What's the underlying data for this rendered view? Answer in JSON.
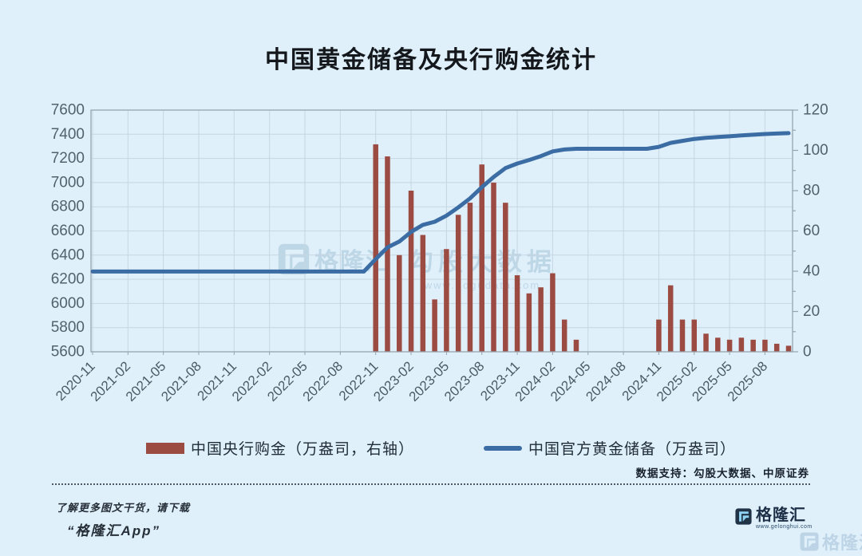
{
  "title": "中国黄金储备及央行购金统计",
  "watermark_center": {
    "brand": "格隆汇",
    "name": "勾股大数据",
    "url": "www.gogudata.com"
  },
  "legend": {
    "bar_label": "中国央行购金（万盎司，右轴）",
    "line_label": "中国官方黄金储备（万盎司）"
  },
  "footer": {
    "data_support": "数据支持：勾股大数据、中原证券",
    "promo_line1": "了解更多图文干货，请下载",
    "promo_line2": "“格隆汇App”",
    "brand": "格隆汇",
    "brand_url": "www.gelonghui.com",
    "corner_watermark": "格隆汇"
  },
  "colors": {
    "bar": "#9c4b43",
    "line": "#3b6da4",
    "grid": "#c6d6e2",
    "spine": "#97a4ae",
    "tick_label": "#53616d",
    "x_label": "#4b5a67"
  },
  "chart_data": {
    "type": "bar+line",
    "title": "中国黄金储备及央行购金统计",
    "x": [
      "2020-11",
      "2020-12",
      "2021-01",
      "2021-02",
      "2021-03",
      "2021-04",
      "2021-05",
      "2021-06",
      "2021-07",
      "2021-08",
      "2021-09",
      "2021-10",
      "2021-11",
      "2021-12",
      "2022-01",
      "2022-02",
      "2022-03",
      "2022-04",
      "2022-05",
      "2022-06",
      "2022-07",
      "2022-08",
      "2022-09",
      "2022-10",
      "2022-11",
      "2022-12",
      "2023-01",
      "2023-02",
      "2023-03",
      "2023-04",
      "2023-05",
      "2023-06",
      "2023-07",
      "2023-08",
      "2023-09",
      "2023-10",
      "2023-11",
      "2023-12",
      "2024-01",
      "2024-02",
      "2024-03",
      "2024-04",
      "2024-05",
      "2024-06",
      "2024-07",
      "2024-08",
      "2024-09",
      "2024-10",
      "2024-11",
      "2024-12",
      "2025-01",
      "2025-02",
      "2025-03",
      "2025-04",
      "2025-05",
      "2025-06",
      "2025-07",
      "2025-08",
      "2025-09",
      "2025-10"
    ],
    "x_tick_labels": [
      "2020-11",
      "2021-02",
      "2021-05",
      "2021-08",
      "2021-11",
      "2022-02",
      "2022-05",
      "2022-08",
      "2022-11",
      "2023-02",
      "2023-05",
      "2023-08",
      "2023-11",
      "2024-02",
      "2024-05",
      "2024-08",
      "2024-11",
      "2025-02",
      "2025-05",
      "2025-08"
    ],
    "tick_every": 3,
    "series": [
      {
        "name": "中国央行购金（万盎司，右轴）",
        "type": "bar",
        "axis": "right",
        "values": [
          0,
          0,
          0,
          0,
          0,
          0,
          0,
          0,
          0,
          0,
          0,
          0,
          0,
          0,
          0,
          0,
          0,
          0,
          0,
          0,
          0,
          0,
          0,
          0,
          103,
          97,
          48,
          80,
          58,
          26,
          51,
          68,
          74,
          93,
          84,
          74,
          38,
          29,
          32,
          39,
          16,
          6,
          0,
          0,
          0,
          0,
          0,
          0,
          16,
          33,
          16,
          16,
          9,
          7,
          6,
          7,
          6,
          6,
          4,
          3
        ]
      },
      {
        "name": "中国官方黄金储备（万盎司）",
        "type": "line",
        "axis": "left",
        "values": [
          6264,
          6264,
          6264,
          6264,
          6264,
          6264,
          6264,
          6264,
          6264,
          6264,
          6264,
          6264,
          6264,
          6264,
          6264,
          6264,
          6264,
          6264,
          6264,
          6264,
          6264,
          6264,
          6264,
          6264,
          6367,
          6464,
          6512,
          6592,
          6650,
          6676,
          6727,
          6795,
          6869,
          6962,
          7046,
          7120,
          7158,
          7187,
          7219,
          7258,
          7274,
          7280,
          7280,
          7280,
          7280,
          7280,
          7280,
          7280,
          7296,
          7329,
          7345,
          7361,
          7370,
          7377,
          7383,
          7390,
          7396,
          7402,
          7406,
          7409
        ]
      }
    ],
    "left_axis": {
      "min": 5600,
      "max": 7600,
      "step": 200
    },
    "right_axis": {
      "min": 0,
      "max": 120,
      "step": 20
    },
    "grid": true,
    "legend_position": "bottom"
  }
}
